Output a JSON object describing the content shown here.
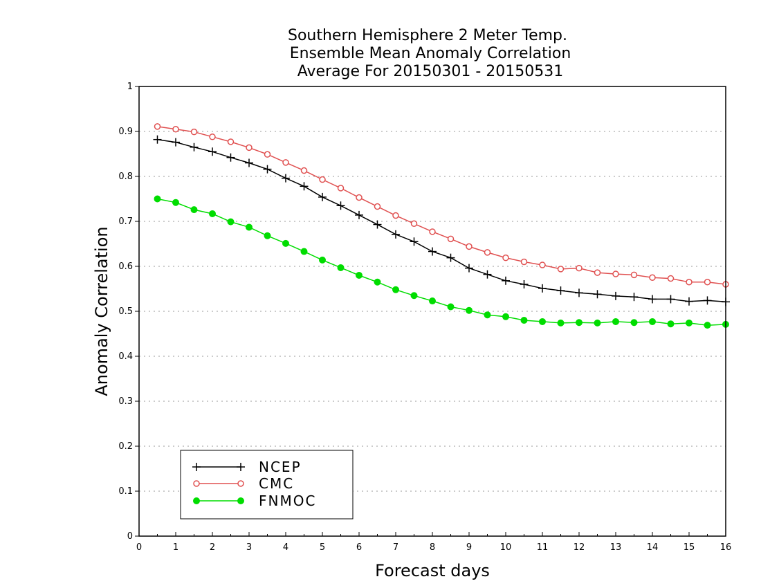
{
  "chart_data": {
    "type": "line",
    "title_lines": [
      "Southern Hemisphere 2 Meter Temp.",
      "Ensemble Mean Anomaly Correlation",
      "Average For 20150301 - 20150531"
    ],
    "xlabel": "Forecast days",
    "ylabel": "Anomaly Correlation",
    "xlim": [
      0,
      16
    ],
    "ylim": [
      0,
      1
    ],
    "xticks": [
      "0",
      "1",
      "2",
      "3",
      "4",
      "5",
      "6",
      "7",
      "8",
      "9",
      "10",
      "11",
      "12",
      "13",
      "14",
      "15",
      "16"
    ],
    "yticks": [
      "0",
      "0.1",
      "0.2",
      "0.3",
      "0.4",
      "0.5",
      "0.6",
      "0.7",
      "0.8",
      "0.9",
      "1"
    ],
    "grid": "horizontal dotted",
    "legend_position": "bottom-left",
    "x": [
      0.5,
      1,
      1.5,
      2,
      2.5,
      3,
      3.5,
      4,
      4.5,
      5,
      5.5,
      6,
      6.5,
      7,
      7.5,
      8,
      8.5,
      9,
      9.5,
      10,
      10.5,
      11,
      11.5,
      12,
      12.5,
      13,
      13.5,
      14,
      14.5,
      15,
      15.5,
      16
    ],
    "series": [
      {
        "name": "NCEP",
        "color": "#000000",
        "marker": "plus",
        "values": [
          0.882,
          0.876,
          0.865,
          0.855,
          0.842,
          0.83,
          0.816,
          0.796,
          0.778,
          0.754,
          0.735,
          0.714,
          0.693,
          0.671,
          0.655,
          0.633,
          0.619,
          0.596,
          0.582,
          0.568,
          0.56,
          0.551,
          0.546,
          0.541,
          0.538,
          0.534,
          0.532,
          0.527,
          0.527,
          0.522,
          0.524,
          0.521
        ]
      },
      {
        "name": "CMC",
        "color": "#e05050",
        "marker": "open-circle",
        "values": [
          0.911,
          0.905,
          0.899,
          0.888,
          0.877,
          0.864,
          0.849,
          0.831,
          0.813,
          0.793,
          0.774,
          0.753,
          0.733,
          0.713,
          0.695,
          0.677,
          0.661,
          0.644,
          0.631,
          0.619,
          0.61,
          0.603,
          0.594,
          0.596,
          0.586,
          0.583,
          0.581,
          0.575,
          0.573,
          0.565,
          0.565,
          0.56
        ]
      },
      {
        "name": "FNMOC",
        "color": "#00dd00",
        "marker": "filled-circle",
        "values": [
          0.75,
          0.742,
          0.726,
          0.717,
          0.699,
          0.687,
          0.668,
          0.651,
          0.633,
          0.614,
          0.597,
          0.58,
          0.565,
          0.548,
          0.535,
          0.523,
          0.51,
          0.502,
          0.492,
          0.488,
          0.48,
          0.477,
          0.474,
          0.475,
          0.474,
          0.477,
          0.475,
          0.477,
          0.472,
          0.474,
          0.469,
          0.471
        ]
      }
    ]
  }
}
